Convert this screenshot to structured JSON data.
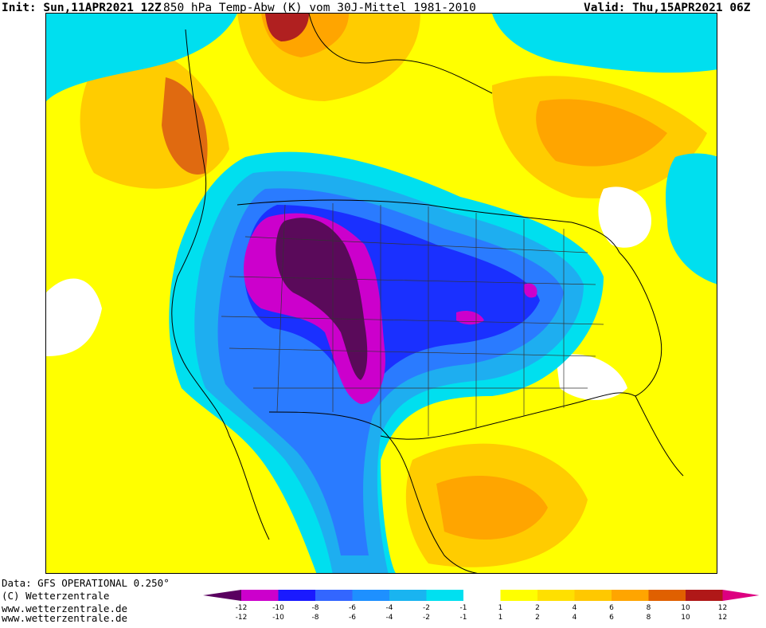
{
  "header": {
    "init": "Init: Sun,11APR2021 12Z",
    "title": "850 hPa Temp-Abw (K) vom 30J-Mittel 1981-2010",
    "valid": "Valid: Thu,15APR2021 06Z"
  },
  "footer": {
    "data_source": "Data: GFS OPERATIONAL 0.250°",
    "copyright": "(C) Wetterzentrale",
    "url1": "www.wetterzentrale.de",
    "url2": "www.wetterzentrale.de"
  },
  "legend": {
    "unit": "K",
    "bins": [
      {
        "from": "-12",
        "to": "-10",
        "color": "#cc00cc"
      },
      {
        "from": "-10",
        "to": "-8",
        "color": "#1a1aff"
      },
      {
        "from": "-8",
        "to": "-6",
        "color": "#3366ff"
      },
      {
        "from": "-6",
        "to": "-4",
        "color": "#1e90ff"
      },
      {
        "from": "-4",
        "to": "-2",
        "color": "#19b4f0"
      },
      {
        "from": "-2",
        "to": "-1",
        "color": "#00e0f0"
      },
      {
        "from": "-1",
        "to": "1",
        "color": "#ffffff"
      },
      {
        "from": "1",
        "to": "2",
        "color": "#ffff00"
      },
      {
        "from": "2",
        "to": "4",
        "color": "#ffe000"
      },
      {
        "from": "4",
        "to": "6",
        "color": "#ffc800"
      },
      {
        "from": "6",
        "to": "8",
        "color": "#ffa500"
      },
      {
        "from": "8",
        "to": "10",
        "color": "#e06000"
      },
      {
        "from": "10",
        "to": "12",
        "color": "#b01818"
      }
    ],
    "low_end_color": "#5a0060",
    "high_end_color": "#dd0080",
    "ticks_left": [
      "-12",
      "-10",
      "-8",
      "-6",
      "-4",
      "-2",
      "-1"
    ],
    "ticks_right": [
      "1",
      "2",
      "4",
      "6",
      "8",
      "10",
      "12"
    ]
  },
  "map": {
    "field": "850 hPa temperature anomaly",
    "colors": {
      "warm_yellow": "#ffff00",
      "warm_gold": "#ffcc00",
      "warm_orange": "#ffa500",
      "warm_dark": "#e06a10",
      "warm_red": "#b02020",
      "neutral": "#ffffff",
      "cold_cyan": "#00dfef",
      "cold_light": "#1eaef0",
      "cold_mid": "#2a7bff",
      "cold_blue": "#1a30ff",
      "cold_magenta": "#cc00cc",
      "cold_purple": "#5a0a5a"
    }
  }
}
